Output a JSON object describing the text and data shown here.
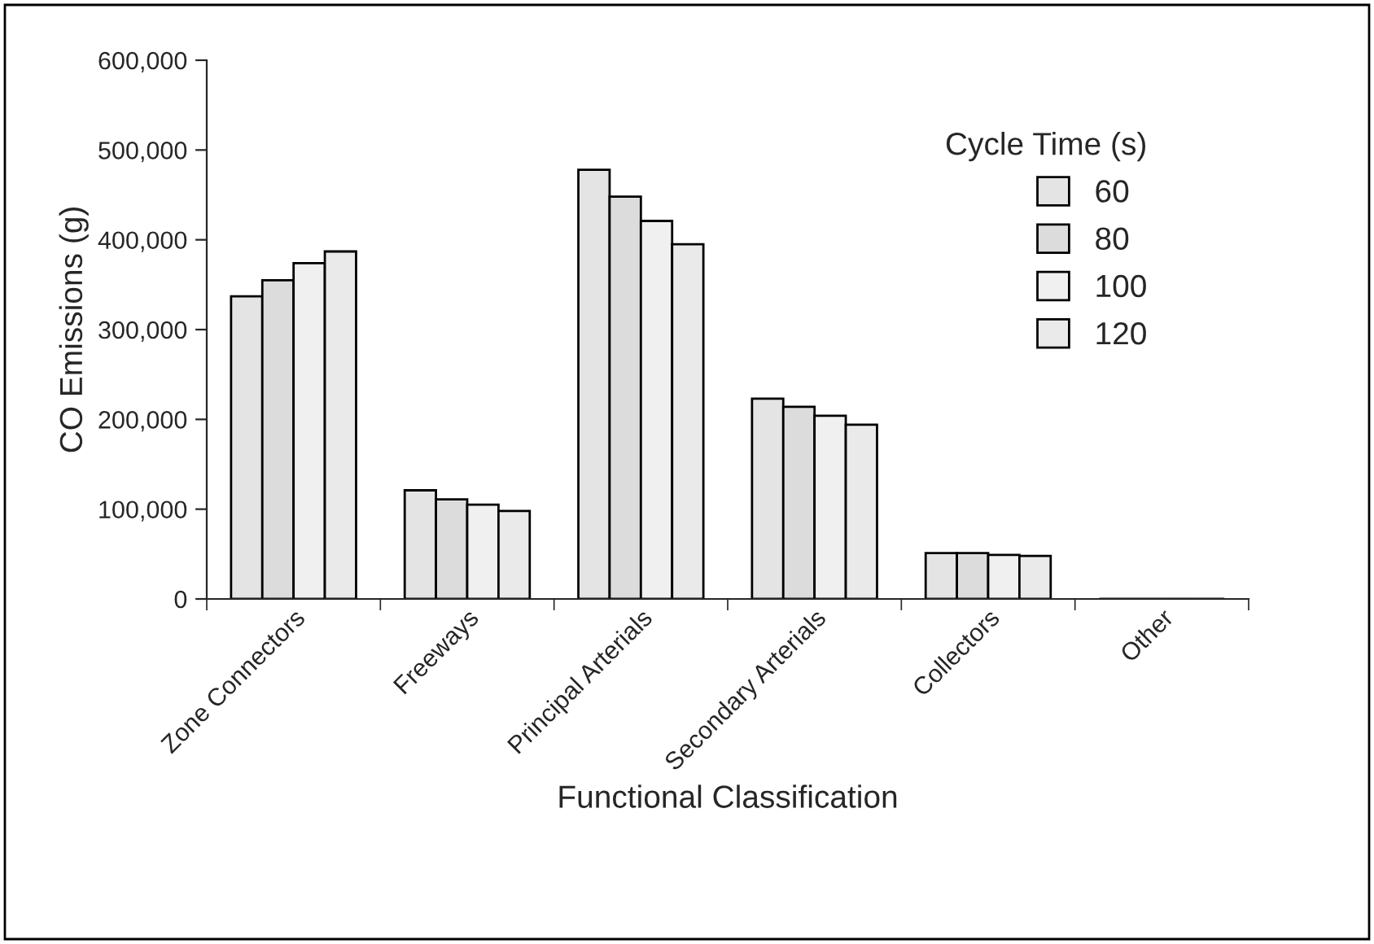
{
  "chart_data": {
    "type": "bar",
    "categories": [
      "Zone Connectors",
      "Freeways",
      "Principal Arterials",
      "Secondary Arterials",
      "Collectors",
      "Other"
    ],
    "series": [
      {
        "name": "60",
        "color": "#e4e4e4",
        "values": [
          337000,
          121000,
          478000,
          223000,
          51000,
          null
        ]
      },
      {
        "name": "80",
        "color": "#dcdcdc",
        "values": [
          355000,
          111000,
          448000,
          214000,
          51000,
          null
        ]
      },
      {
        "name": "100",
        "color": "#f0f0f0",
        "values": [
          374000,
          105000,
          421000,
          204000,
          49000,
          null
        ]
      },
      {
        "name": "120",
        "color": "#eaeaea",
        "values": [
          387000,
          98000,
          395000,
          194000,
          48000,
          null
        ]
      }
    ],
    "xlabel": "Functional Classification",
    "ylabel": "CO Emissions (g)",
    "legend_title": "Cycle Time (s)",
    "legend": "top right",
    "ylim": [
      0,
      600000
    ],
    "yticks": [
      {
        "value": 0,
        "label": "0"
      },
      {
        "value": 100000,
        "label": "100,000"
      },
      {
        "value": 200000,
        "label": "200,000"
      },
      {
        "value": 300000,
        "label": "300,000"
      },
      {
        "value": 400000,
        "label": "400,000"
      },
      {
        "value": 500000,
        "label": "500,000"
      },
      {
        "value": 600000,
        "label": "600,000"
      }
    ],
    "grid": false
  }
}
